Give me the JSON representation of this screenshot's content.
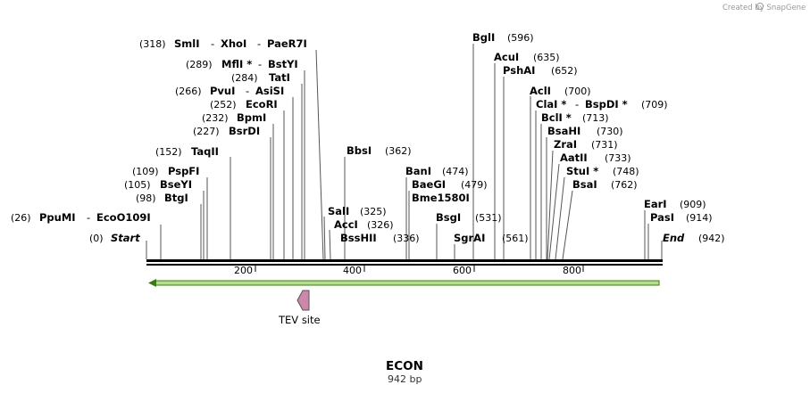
{
  "credit": "Created by SnapGene",
  "title": "ECON",
  "subtitle": "942 bp",
  "feature": {
    "name": "TEV site",
    "color": "#cc88aa"
  },
  "colors": {
    "backbone": "#000000",
    "orf_fill": "#b5e08b",
    "orf_stroke": "#3a7a10"
  },
  "ticks": [
    "200",
    "400",
    "600",
    "800"
  ],
  "ends": {
    "start": {
      "name": "Start",
      "pos": "(0)"
    },
    "end": {
      "name": "End",
      "pos": "(942)"
    }
  },
  "sites": [
    {
      "name": "SmlI",
      "pos": "(318)"
    },
    {
      "name": "XhoI",
      "pos": ""
    },
    {
      "name": "PaeR7I",
      "pos": ""
    },
    {
      "name": "MflI *",
      "pos": "(289)"
    },
    {
      "name": "BstYI",
      "pos": ""
    },
    {
      "name": "TatI",
      "pos": "(284)"
    },
    {
      "name": "PvuI",
      "pos": "(266)"
    },
    {
      "name": "AsiSI",
      "pos": ""
    },
    {
      "name": "EcoRI",
      "pos": "(252)"
    },
    {
      "name": "BpmI",
      "pos": "(232)"
    },
    {
      "name": "BsrDI",
      "pos": "(227)"
    },
    {
      "name": "TaqII",
      "pos": "(152)"
    },
    {
      "name": "PspFI",
      "pos": "(109)"
    },
    {
      "name": "BseYI",
      "pos": "(105)"
    },
    {
      "name": "BtgI",
      "pos": "(98)"
    },
    {
      "name": "PpuMI",
      "pos": "(26)"
    },
    {
      "name": "EcoO109I",
      "pos": ""
    },
    {
      "name": "BbsI",
      "pos": "(362)"
    },
    {
      "name": "SalI",
      "pos": "(325)"
    },
    {
      "name": "AccI",
      "pos": "(326)"
    },
    {
      "name": "BssHII",
      "pos": "(336)"
    },
    {
      "name": "BglI",
      "pos": "(596)"
    },
    {
      "name": "AcuI",
      "pos": "(635)"
    },
    {
      "name": "PshAI",
      "pos": "(652)"
    },
    {
      "name": "BanI",
      "pos": "(474)"
    },
    {
      "name": "BaeGI",
      "pos": "(479)"
    },
    {
      "name": "Bme1580I",
      "pos": ""
    },
    {
      "name": "BsgI",
      "pos": "(531)"
    },
    {
      "name": "SgrAI",
      "pos": "(561)"
    },
    {
      "name": "AclI",
      "pos": "(700)"
    },
    {
      "name": "ClaI *",
      "pos": "(709)"
    },
    {
      "name": "BspDI *",
      "pos": ""
    },
    {
      "name": "BclI *",
      "pos": "(713)"
    },
    {
      "name": "BsaHI",
      "pos": "(730)"
    },
    {
      "name": "ZraI",
      "pos": "(731)"
    },
    {
      "name": "AatII",
      "pos": "(733)"
    },
    {
      "name": "StuI *",
      "pos": "(748)"
    },
    {
      "name": "BsaI",
      "pos": "(762)"
    },
    {
      "name": "EarI",
      "pos": "(909)"
    },
    {
      "name": "PasI",
      "pos": "(914)"
    }
  ]
}
